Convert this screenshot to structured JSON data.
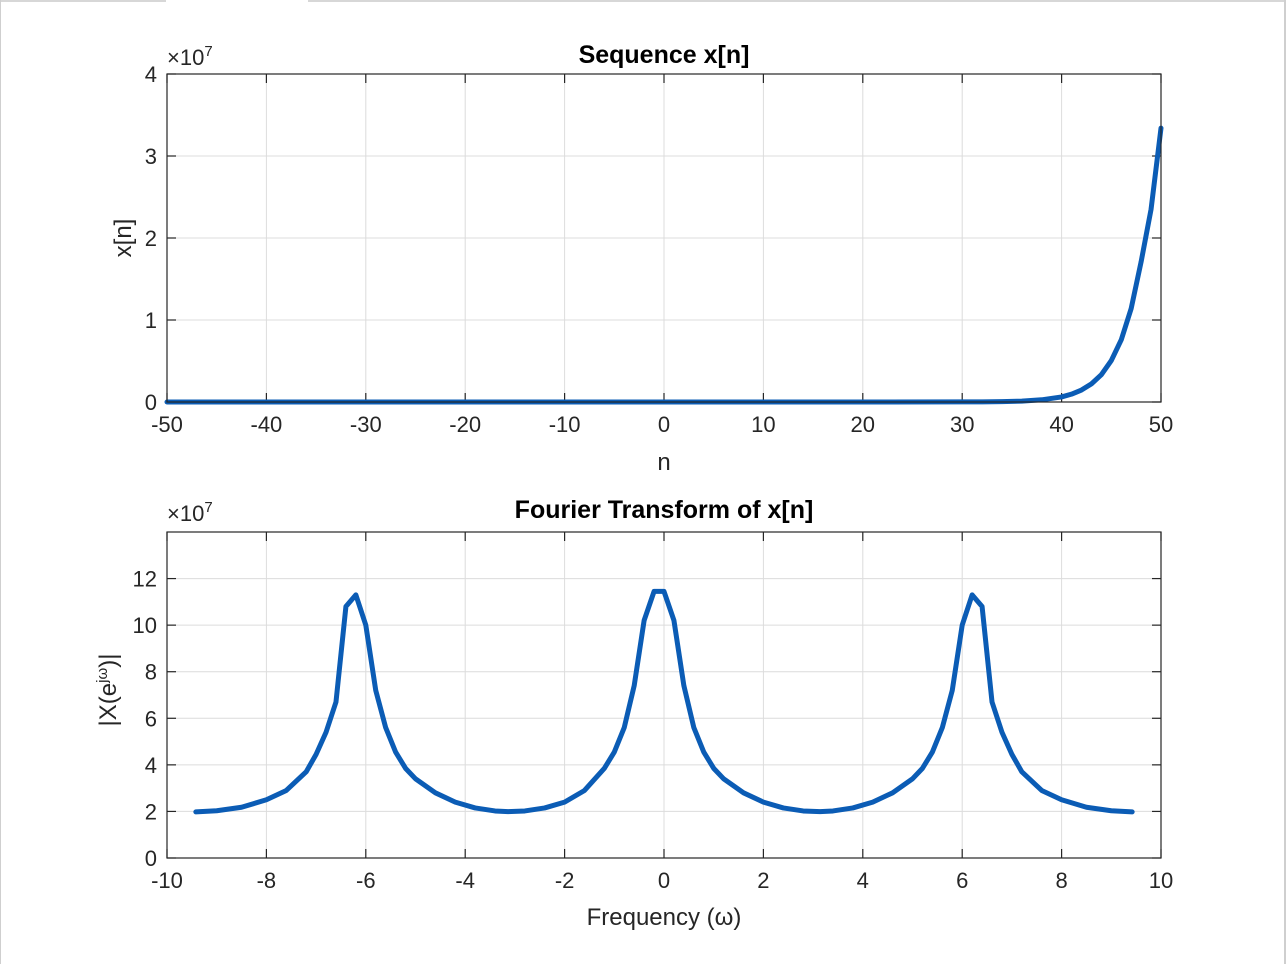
{
  "colors": {
    "line": "#0b5cb5",
    "frame_tab": "#d7d7d7"
  },
  "chart_data": [
    {
      "type": "line",
      "title": "Sequence x[n]",
      "xlabel": "n",
      "ylabel": "x[n]",
      "y_exponent_label": "×10^7",
      "y_exponent_base": "×10",
      "y_exponent_power": "7",
      "xlim": [
        -50,
        50
      ],
      "ylim": [
        0,
        40000000
      ],
      "grid": true,
      "xticks": [
        -50,
        -40,
        -30,
        -20,
        -10,
        0,
        10,
        20,
        30,
        40,
        50
      ],
      "xtick_labels": [
        "-50",
        "-40",
        "-30",
        "-20",
        "-10",
        "0",
        "10",
        "20",
        "30",
        "40",
        "50"
      ],
      "yticks": [
        0,
        10000000,
        20000000,
        30000000,
        40000000
      ],
      "ytick_labels": [
        "0",
        "1",
        "2",
        "3",
        "4"
      ],
      "series": [
        {
          "x": [
            -50,
            -40,
            -30,
            -20,
            -10,
            0,
            10,
            20,
            30,
            32,
            34,
            36,
            38,
            40,
            41,
            42,
            43,
            44,
            45,
            46,
            47,
            48,
            49,
            50
          ],
          "y": [
            0,
            0,
            0,
            0,
            0,
            0,
            0,
            500,
            9000,
            22000,
            49000,
            110000,
            270000,
            620000,
            960000,
            1460000,
            2210000,
            3330000,
            5050000,
            7580000,
            11400000,
            17100000,
            23500000,
            33400000
          ]
        }
      ]
    },
    {
      "type": "line",
      "title": "Fourier Transform of x[n]",
      "xlabel": "Frequency  (ω)",
      "ylabel": "|X(e^{jω})|",
      "ylabel_main": "|X(e",
      "ylabel_sup": "jω",
      "ylabel_end": ")|",
      "y_exponent_label": "×10^7",
      "y_exponent_base": "×10",
      "y_exponent_power": "7",
      "xlim": [
        -10,
        10
      ],
      "ylim": [
        0,
        140000000
      ],
      "grid": true,
      "xticks": [
        -10,
        -8,
        -6,
        -4,
        -2,
        0,
        2,
        4,
        6,
        8,
        10
      ],
      "xtick_labels": [
        "-10",
        "-8",
        "-6",
        "-4",
        "-2",
        "0",
        "2",
        "4",
        "6",
        "8",
        "10"
      ],
      "yticks": [
        0,
        20000000,
        40000000,
        60000000,
        80000000,
        100000000,
        120000000
      ],
      "ytick_labels": [
        "0",
        "2",
        "4",
        "6",
        "8",
        "10",
        "12"
      ],
      "series": [
        {
          "x": [
            -9.42,
            -9.0,
            -8.5,
            -8.0,
            -7.6,
            -7.2,
            -7.0,
            -6.8,
            -6.6,
            -6.4,
            -6.2,
            -6.0,
            -5.8,
            -5.6,
            -5.4,
            -5.2,
            -5.0,
            -4.6,
            -4.2,
            -3.8,
            -3.4,
            -3.14,
            -2.8,
            -2.4,
            -2.0,
            -1.6,
            -1.2,
            -1.0,
            -0.8,
            -0.6,
            -0.4,
            -0.2,
            0.0,
            0.2,
            0.4,
            0.6,
            0.8,
            1.0,
            1.2,
            1.6,
            2.0,
            2.4,
            2.8,
            3.14,
            3.4,
            3.8,
            4.2,
            4.6,
            5.0,
            5.2,
            5.4,
            5.6,
            5.8,
            6.0,
            6.2,
            6.4,
            6.6,
            6.8,
            7.0,
            7.2,
            7.6,
            8.0,
            8.5,
            9.0,
            9.42
          ],
          "y": [
            19800000,
            20300000,
            21800000,
            25000000,
            29000000,
            37000000,
            44500000,
            54000000,
            67000000,
            108000000,
            113000000,
            100000000,
            72000000,
            56000000,
            45500000,
            38500000,
            34000000,
            28000000,
            24000000,
            21500000,
            20200000,
            19900000,
            20200000,
            21500000,
            24000000,
            29000000,
            38500000,
            45500000,
            56000000,
            74000000,
            102000000,
            114500000,
            114500000,
            102000000,
            74000000,
            56000000,
            45500000,
            38500000,
            34000000,
            28000000,
            24000000,
            21500000,
            20200000,
            19900000,
            20200000,
            21500000,
            24000000,
            28000000,
            34000000,
            38500000,
            45500000,
            56000000,
            72000000,
            100000000,
            113000000,
            108000000,
            67000000,
            54000000,
            44500000,
            37000000,
            29000000,
            25000000,
            21800000,
            20300000,
            19800000
          ]
        }
      ]
    }
  ]
}
